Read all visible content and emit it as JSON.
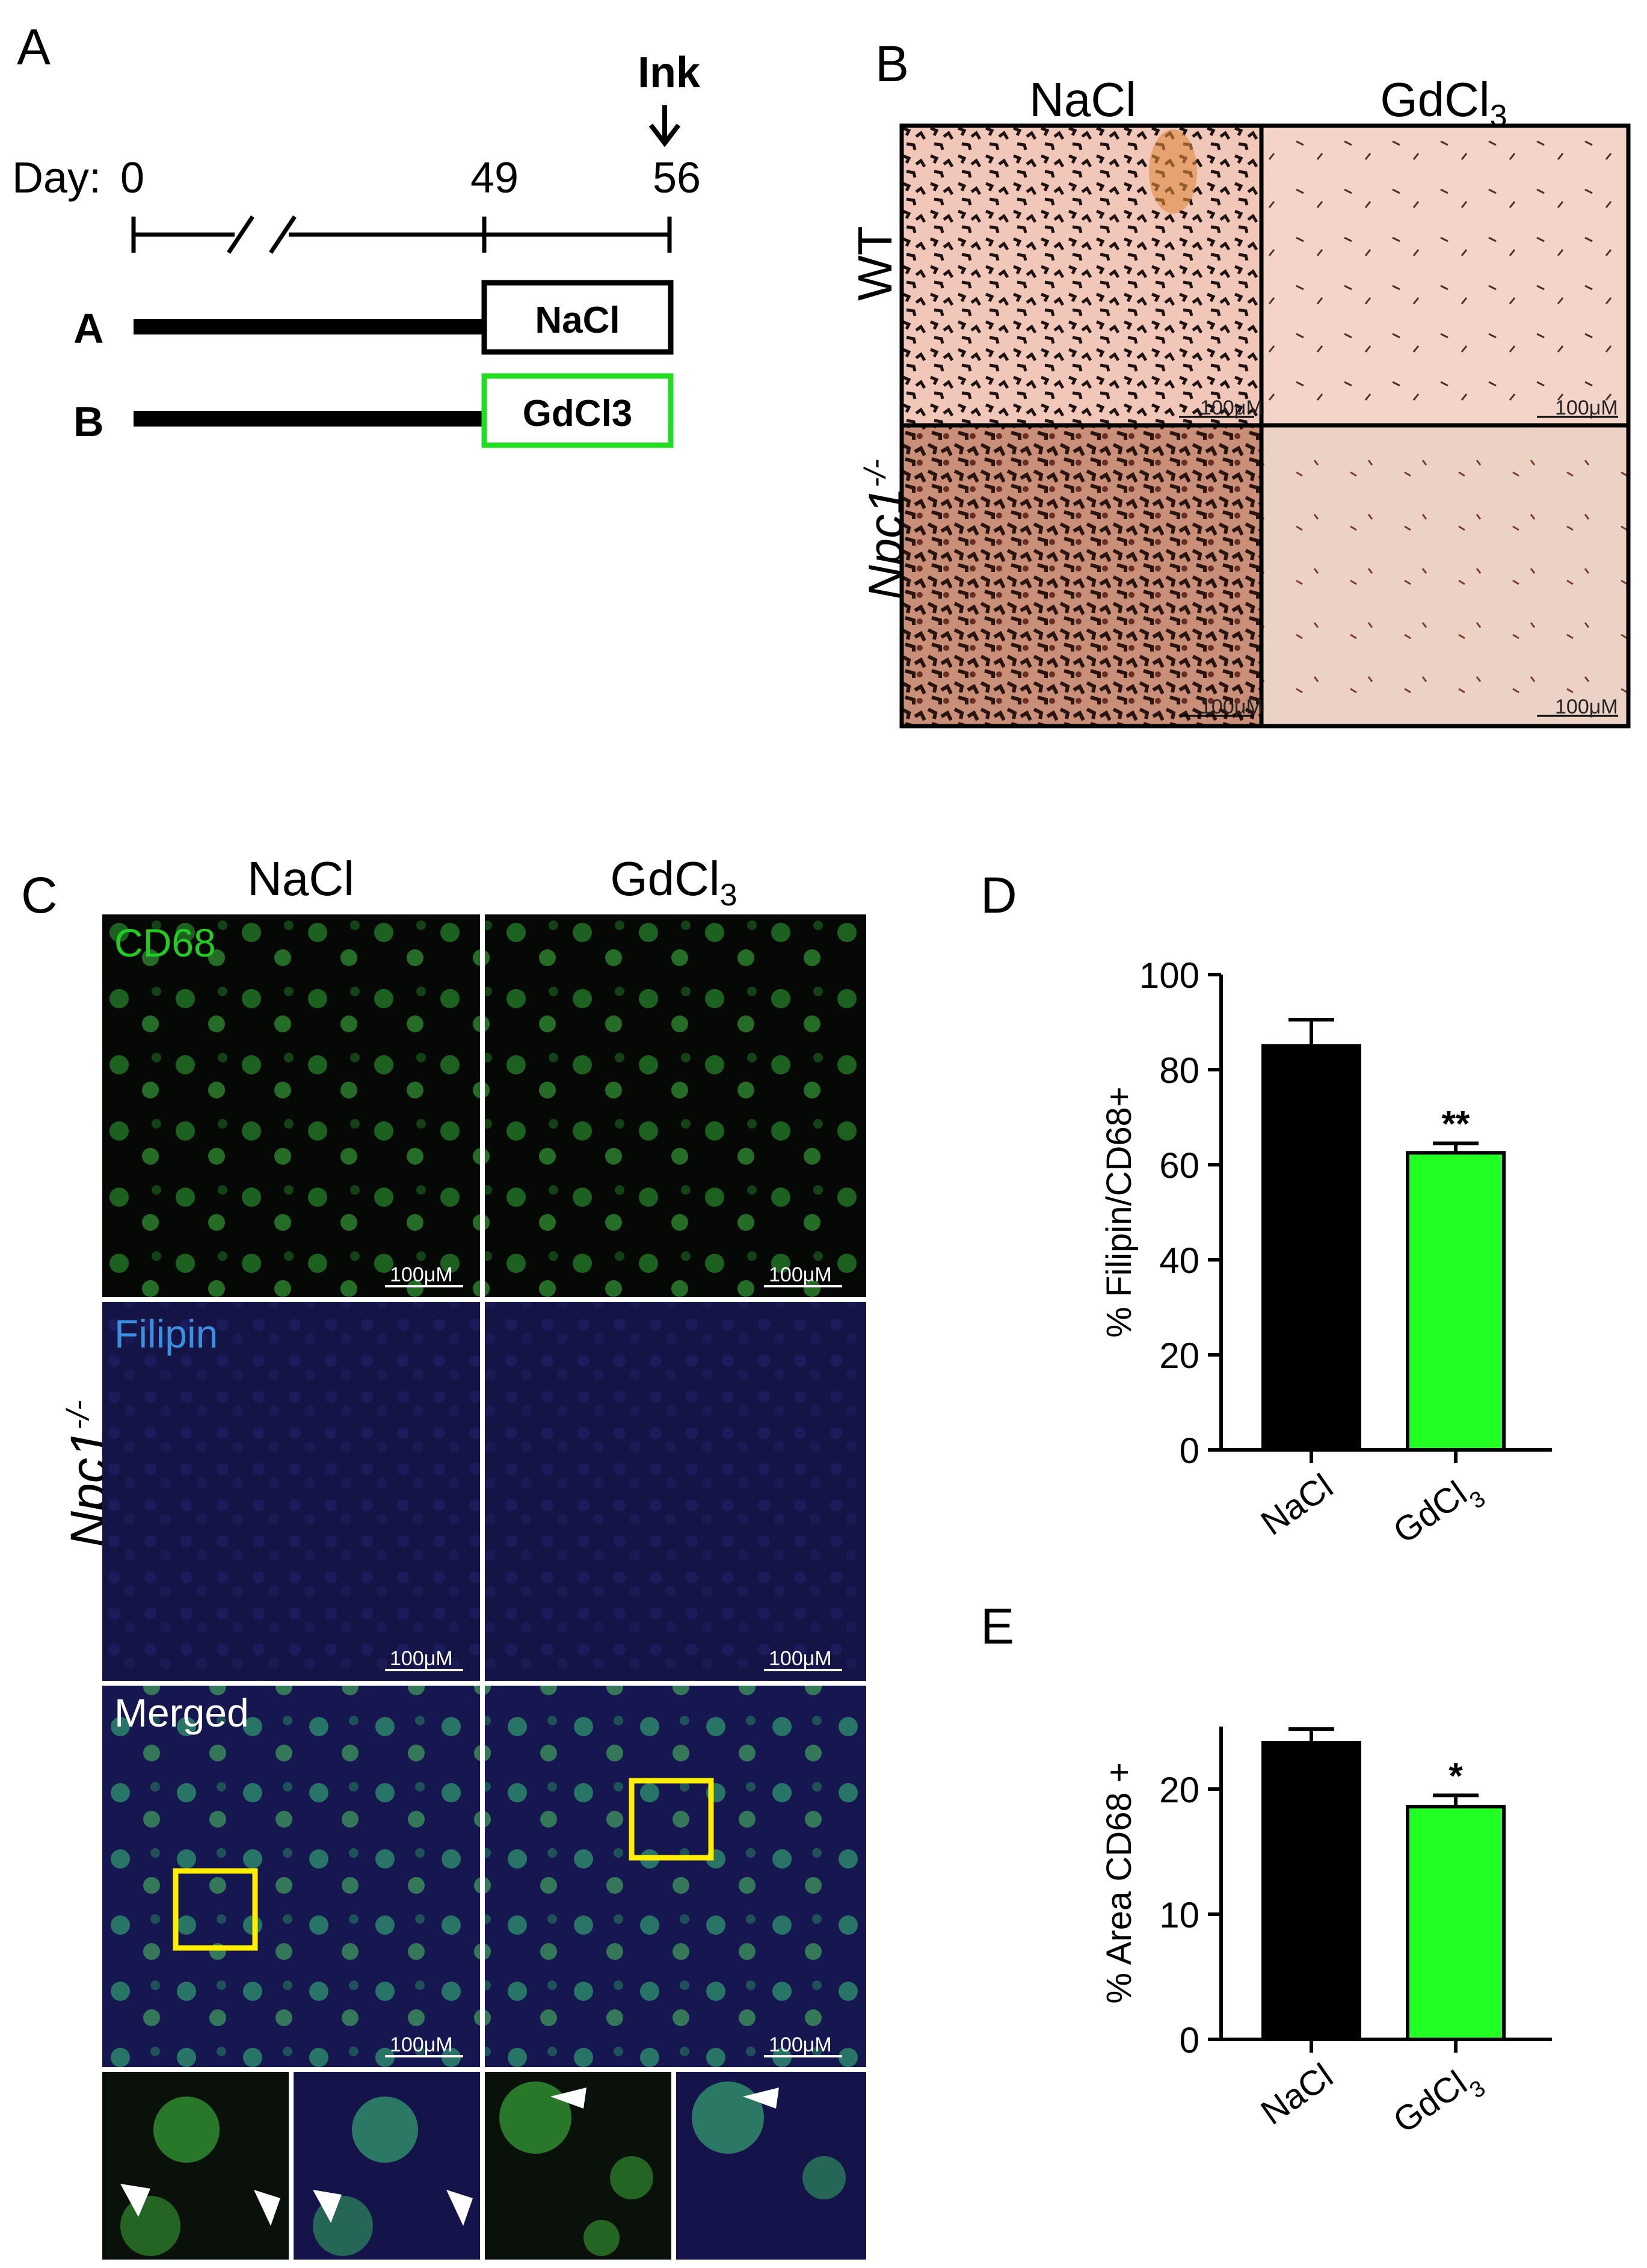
{
  "panel_a": {
    "letter": "A",
    "day_label": "Day:",
    "ticks": [
      "0",
      "49",
      "56"
    ],
    "ink_label": "Ink",
    "groups": [
      {
        "label": "A",
        "treatment": "NaCl",
        "color": "#000000"
      },
      {
        "label": "B",
        "treatment": "GdCl3",
        "color": "#22dd22"
      }
    ]
  },
  "panel_b": {
    "letter": "B",
    "col1": "NaCl",
    "col2_base": "GdCl",
    "col2_sub": "3",
    "rows": [
      {
        "label": "WT",
        "italic": false
      },
      {
        "label_base": "Npc1",
        "label_sup": "-/-",
        "italic": true
      }
    ],
    "scale": "100μM"
  },
  "panel_c": {
    "letter": "C",
    "col1": "NaCl",
    "col2_base": "GdCl",
    "col2_sub": "3",
    "row_label_base": "Npc1",
    "row_label_sup": "-/-",
    "rows": [
      {
        "label": "CD68",
        "label_color": "#22cc22"
      },
      {
        "label": "Filipin",
        "label_color": "#3a8fe0"
      },
      {
        "label": "Merged",
        "label_color": "#ffffff"
      }
    ],
    "scale": "100μM",
    "box_color": "#ffee00"
  },
  "chart_data": [
    {
      "panel": "D",
      "type": "bar",
      "categories": [
        "NaCl",
        "GdCl3"
      ],
      "category_labels": [
        {
          "base": "NaCl",
          "sub": ""
        },
        {
          "base": "GdCl",
          "sub": "3"
        }
      ],
      "values": [
        85,
        62.5
      ],
      "errors": [
        5.5,
        2.0
      ],
      "colors": [
        "#000000",
        "#22ff22"
      ],
      "significance": [
        "",
        "**"
      ],
      "ylabel": "% Filipin/CD68+",
      "ylim": [
        0,
        100
      ],
      "yticks": [
        0,
        20,
        40,
        60,
        80,
        100
      ]
    },
    {
      "panel": "E",
      "type": "bar",
      "categories": [
        "NaCl",
        "GdCl3"
      ],
      "category_labels": [
        {
          "base": "NaCl",
          "sub": ""
        },
        {
          "base": "GdCl",
          "sub": "3"
        }
      ],
      "values": [
        23.7,
        18.6
      ],
      "errors": [
        1.1,
        0.9
      ],
      "colors": [
        "#000000",
        "#22ff22"
      ],
      "significance": [
        "",
        "*"
      ],
      "ylabel": "% Area CD68 +",
      "ylim": [
        0,
        25
      ],
      "yticks": [
        0,
        10,
        20
      ]
    }
  ]
}
